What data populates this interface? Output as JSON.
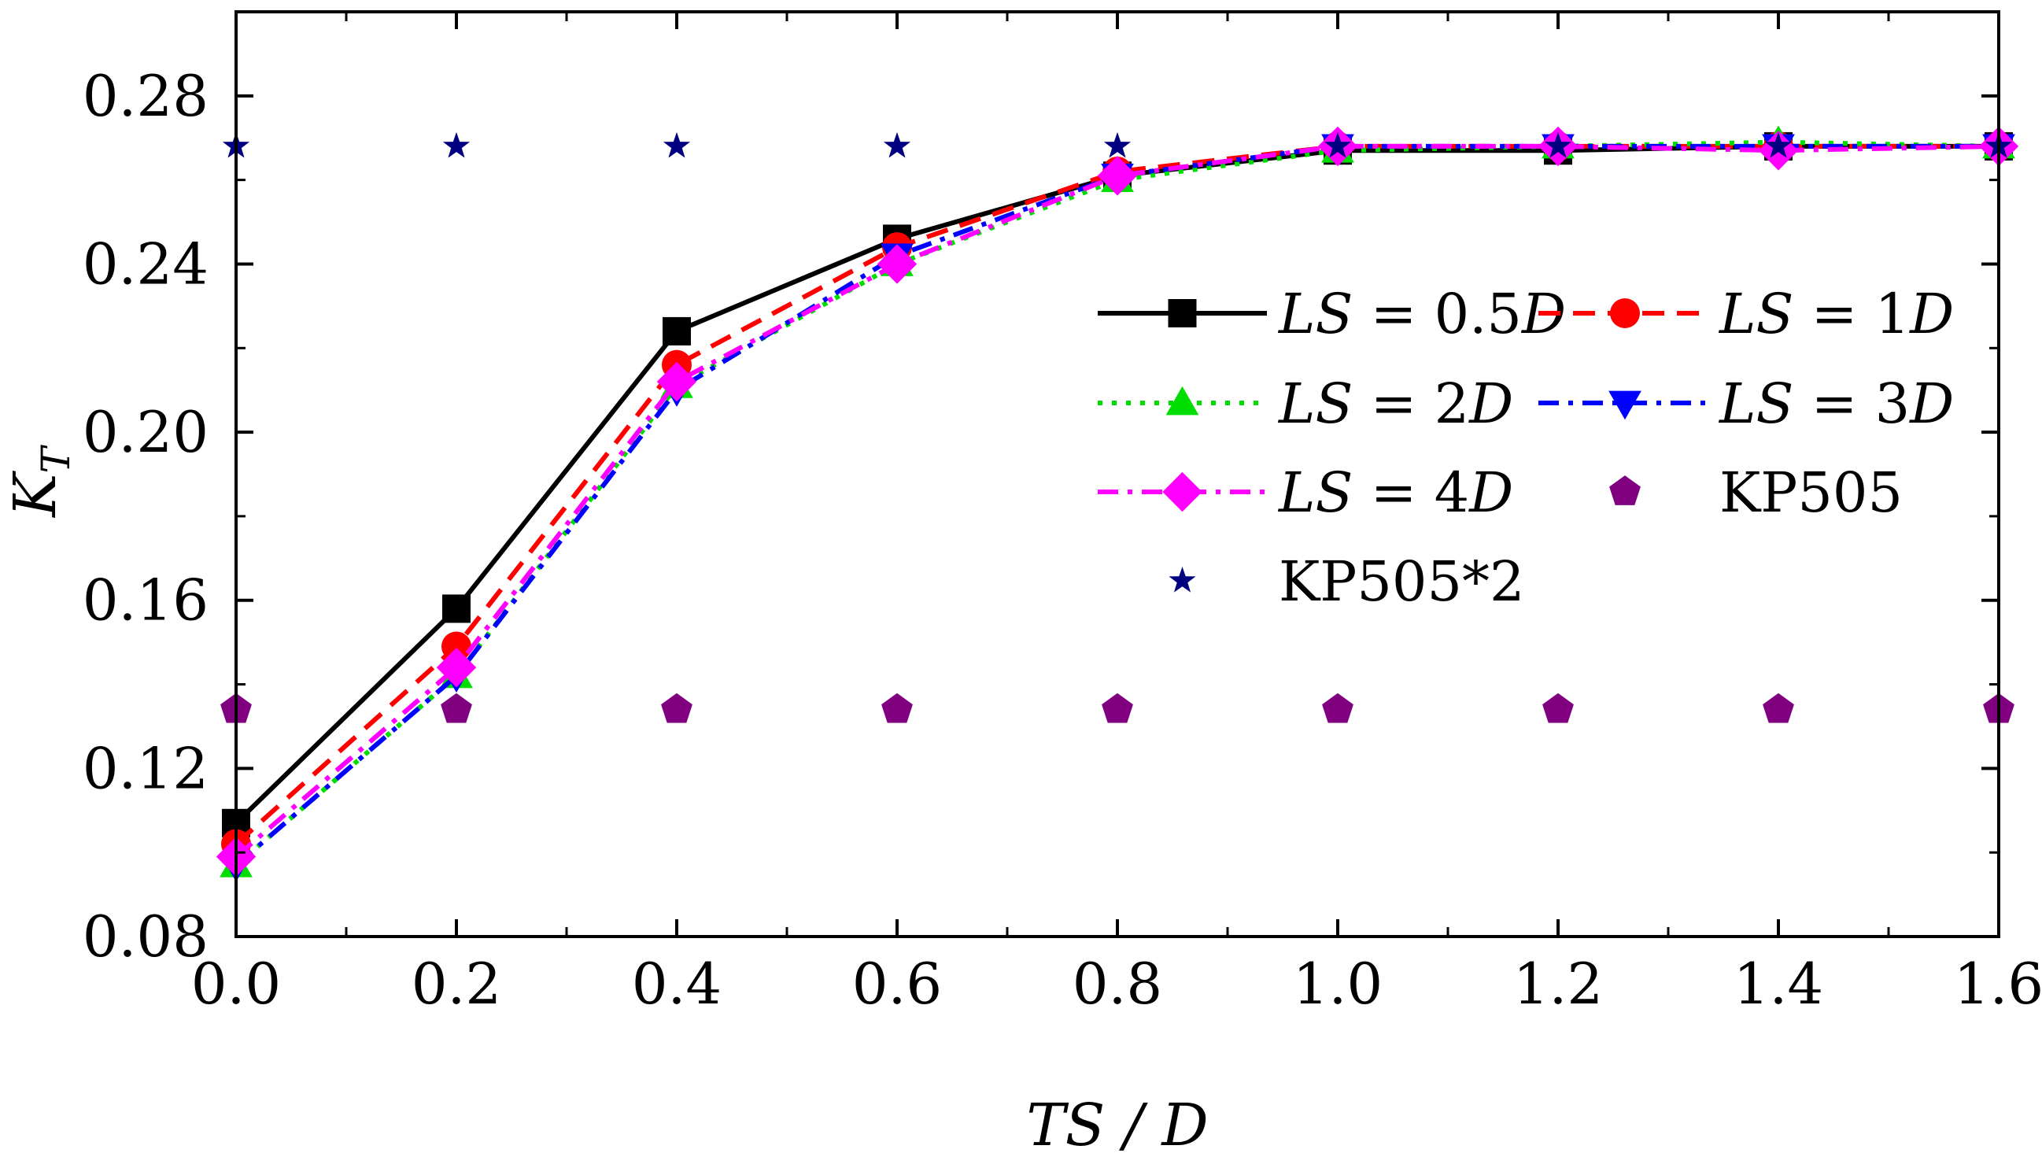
{
  "chart_data": {
    "type": "line",
    "title": "",
    "xlabel": "TS / D",
    "ylabel": {
      "main": "K",
      "sub": "T"
    },
    "xlim": [
      0.0,
      1.6
    ],
    "ylim": [
      0.08,
      0.3
    ],
    "xticks": [
      0.0,
      0.2,
      0.4,
      0.6,
      0.8,
      1.0,
      1.2,
      1.4,
      1.6
    ],
    "xtick_labels": [
      "0.0",
      "0.2",
      "0.4",
      "0.6",
      "0.8",
      "1.0",
      "1.2",
      "1.4",
      "1.6"
    ],
    "yticks": [
      0.08,
      0.12,
      0.16,
      0.2,
      0.24,
      0.28
    ],
    "ytick_labels": [
      "0.08",
      "0.12",
      "0.16",
      "0.20",
      "0.24",
      "0.28"
    ],
    "grid": false,
    "legend_position": "right",
    "x": [
      0.0,
      0.2,
      0.4,
      0.6,
      0.8,
      1.0,
      1.2,
      1.4,
      1.6
    ],
    "series": [
      {
        "name": "LS = 0.5D",
        "label_parts": [
          [
            "LS",
            true
          ],
          [
            " = 0.5",
            false
          ],
          [
            "D",
            true
          ]
        ],
        "color": "#000000",
        "marker": "square",
        "line": "solid",
        "values": [
          0.107,
          0.158,
          0.224,
          0.246,
          0.261,
          0.267,
          0.267,
          0.268,
          0.268
        ]
      },
      {
        "name": "LS = 1D",
        "label_parts": [
          [
            "LS",
            true
          ],
          [
            " = 1",
            false
          ],
          [
            "D",
            true
          ]
        ],
        "color": "#ff0000",
        "marker": "circle",
        "line": "dash",
        "values": [
          0.102,
          0.149,
          0.216,
          0.244,
          0.262,
          0.268,
          0.268,
          0.268,
          0.268
        ]
      },
      {
        "name": "LS = 2D",
        "label_parts": [
          [
            "LS",
            true
          ],
          [
            " = 2",
            false
          ],
          [
            "D",
            true
          ]
        ],
        "color": "#00dd00",
        "marker": "triangle-up",
        "line": "dot",
        "values": [
          0.097,
          0.142,
          0.211,
          0.24,
          0.26,
          0.267,
          0.268,
          0.269,
          0.268
        ]
      },
      {
        "name": "LS = 3D",
        "label_parts": [
          [
            "LS",
            true
          ],
          [
            " = 3",
            false
          ],
          [
            "D",
            true
          ]
        ],
        "color": "#0000ff",
        "marker": "triangle-down",
        "line": "dashdot",
        "values": [
          0.097,
          0.142,
          0.21,
          0.242,
          0.261,
          0.268,
          0.268,
          0.268,
          0.268
        ]
      },
      {
        "name": "LS = 4D",
        "label_parts": [
          [
            "LS",
            true
          ],
          [
            " = 4",
            false
          ],
          [
            "D",
            true
          ]
        ],
        "color": "#ff00ff",
        "marker": "diamond",
        "line": "dashdot",
        "values": [
          0.099,
          0.144,
          0.212,
          0.24,
          0.261,
          0.268,
          0.268,
          0.267,
          0.268
        ]
      },
      {
        "name": "KP505",
        "label_parts": [
          [
            "KP505",
            false
          ]
        ],
        "color": "#800080",
        "marker": "pentagon",
        "line": "none",
        "values": [
          0.134,
          0.134,
          0.134,
          0.134,
          0.134,
          0.134,
          0.134,
          0.134,
          0.134
        ]
      },
      {
        "name": "KP505*2",
        "label_parts": [
          [
            "KP505*2",
            false
          ]
        ],
        "color": "#000080",
        "marker": "star",
        "line": "none",
        "values": [
          0.268,
          0.268,
          0.268,
          0.268,
          0.268,
          0.268,
          0.268,
          0.268,
          0.268
        ]
      }
    ]
  }
}
